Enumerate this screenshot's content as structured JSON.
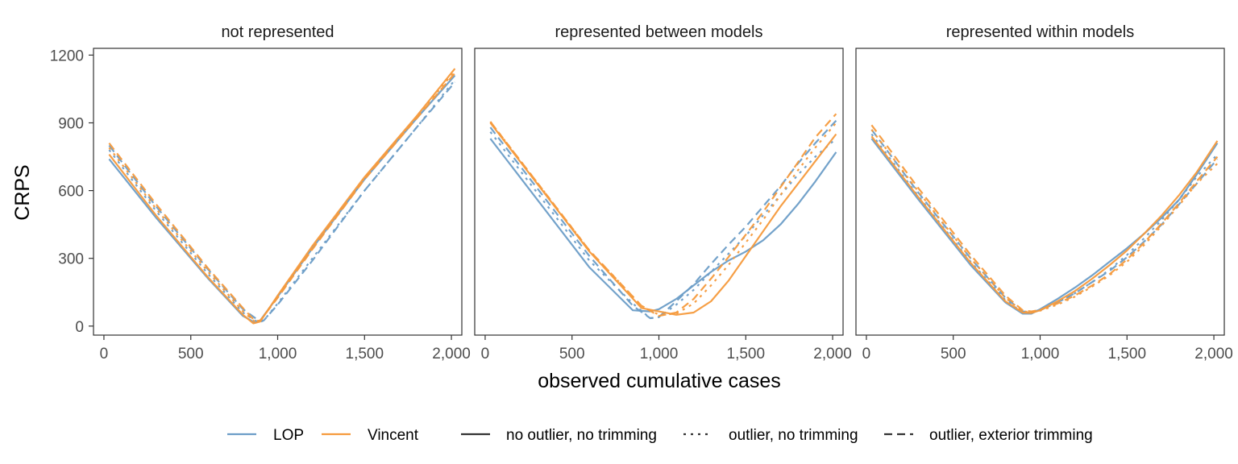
{
  "chart_data": {
    "type": "line",
    "ylabel": "CRPS",
    "xlabel": "observed cumulative cases",
    "xlim": [
      -60,
      2060
    ],
    "ylim": [
      -40,
      1230
    ],
    "x_ticks": [
      0,
      500,
      1000,
      1500,
      2000
    ],
    "x_tick_labels": [
      "0",
      "500",
      "1,000",
      "1,500",
      "2,000"
    ],
    "y_ticks": [
      0,
      300,
      600,
      900,
      1200
    ],
    "y_tick_labels": [
      "0",
      "300",
      "600",
      "900",
      "1200"
    ],
    "grid": false,
    "legend_position": "bottom",
    "colors": {
      "LOP": "#6B9DC7",
      "Vincent": "#F59A3C"
    },
    "legend": {
      "method": [
        {
          "name": "LOP",
          "color": "#6B9DC7"
        },
        {
          "name": "Vincent",
          "color": "#F59A3C"
        }
      ],
      "scenario": [
        {
          "name": "no outlier, no trimming",
          "dash": "solid"
        },
        {
          "name": "outlier, no trimming",
          "dash": "dotted"
        },
        {
          "name": "outlier, exterior trimming",
          "dash": "dashed"
        }
      ]
    },
    "panels": [
      {
        "title": "not represented",
        "series": [
          {
            "method": "LOP",
            "scenario": "no outlier, no trimming",
            "x": [
              30,
              300,
              600,
              800,
              870,
              900,
              1000,
              1200,
              1500,
              1800,
              2020
            ],
            "y": [
              740,
              480,
              210,
              45,
              15,
              25,
              130,
              345,
              650,
              920,
              1110
            ]
          },
          {
            "method": "LOP",
            "scenario": "outlier, no trimming",
            "x": [
              30,
              300,
              600,
              800,
              890,
              920,
              1000,
              1200,
              1500,
              1800,
              2020
            ],
            "y": [
              780,
              510,
              230,
              60,
              15,
              25,
              100,
              300,
              600,
              880,
              1090
            ]
          },
          {
            "method": "LOP",
            "scenario": "outlier, exterior trimming",
            "x": [
              30,
              300,
              600,
              800,
              890,
              920,
              1000,
              1200,
              1500,
              1800,
              2020
            ],
            "y": [
              800,
              530,
              250,
              75,
              25,
              25,
              95,
              290,
              600,
              880,
              1080
            ]
          },
          {
            "method": "Vincent",
            "scenario": "no outlier, no trimming",
            "x": [
              30,
              300,
              600,
              800,
              860,
              900,
              1000,
              1200,
              1500,
              1800,
              2020
            ],
            "y": [
              760,
              490,
              215,
              50,
              12,
              20,
              135,
              355,
              660,
              930,
              1140
            ]
          },
          {
            "method": "Vincent",
            "scenario": "outlier, no trimming",
            "x": [
              30,
              300,
              600,
              800,
              870,
              900,
              1000,
              1200,
              1500,
              1800,
              2020
            ],
            "y": [
              790,
              520,
              240,
              65,
              18,
              25,
              130,
              345,
              655,
              925,
              1130
            ]
          },
          {
            "method": "Vincent",
            "scenario": "outlier, exterior trimming",
            "x": [
              30,
              300,
              600,
              800,
              870,
              900,
              1000,
              1200,
              1500,
              1800,
              2020
            ],
            "y": [
              810,
              540,
              255,
              80,
              22,
              25,
              125,
              340,
              650,
              920,
              1120
            ]
          }
        ]
      },
      {
        "title": "represented between models",
        "series": [
          {
            "method": "LOP",
            "scenario": "no outlier, no trimming",
            "x": [
              30,
              300,
              600,
              850,
              950,
              1000,
              1100,
              1200,
              1300,
              1400,
              1500,
              1600,
              1700,
              1800,
              1900,
              2020
            ],
            "y": [
              830,
              560,
              260,
              70,
              65,
              75,
              120,
              180,
              240,
              290,
              330,
              380,
              450,
              540,
              640,
              770
            ]
          },
          {
            "method": "LOP",
            "scenario": "outlier, no trimming",
            "x": [
              30,
              300,
              600,
              850,
              950,
              1000,
              1100,
              1200,
              1300,
              1400,
              1500,
              1600,
              1700,
              1800,
              1900,
              2020
            ],
            "y": [
              860,
              590,
              290,
              100,
              35,
              40,
              95,
              160,
              240,
              320,
              400,
              490,
              580,
              670,
              750,
              830
            ]
          },
          {
            "method": "LOP",
            "scenario": "outlier, exterior trimming",
            "x": [
              30,
              300,
              600,
              850,
              950,
              1000,
              1100,
              1200,
              1300,
              1400,
              1500,
              1600,
              1700,
              1800,
              1900,
              2020
            ],
            "y": [
              880,
              610,
              310,
              90,
              35,
              40,
              110,
              185,
              275,
              360,
              440,
              530,
              620,
              720,
              810,
              910
            ]
          },
          {
            "method": "Vincent",
            "scenario": "no outlier, no trimming",
            "x": [
              30,
              300,
              600,
              900,
              1000,
              1100,
              1200,
              1300,
              1400,
              1500,
              1600,
              1700,
              1800,
              1900,
              2020
            ],
            "y": [
              900,
              630,
              330,
              80,
              65,
              50,
              60,
              110,
              200,
              310,
              420,
              530,
              630,
              730,
              850
            ]
          },
          {
            "method": "Vincent",
            "scenario": "outlier, no trimming",
            "x": [
              30,
              300,
              600,
              900,
              1000,
              1100,
              1200,
              1300,
              1400,
              1500,
              1600,
              1700,
              1800,
              1900,
              2020
            ],
            "y": [
              905,
              635,
              335,
              90,
              50,
              55,
              100,
              180,
              270,
              370,
              470,
              580,
              690,
              790,
              900
            ]
          },
          {
            "method": "Vincent",
            "scenario": "outlier, exterior trimming",
            "x": [
              30,
              300,
              600,
              900,
              1000,
              1100,
              1200,
              1300,
              1400,
              1500,
              1600,
              1700,
              1800,
              1900,
              2020
            ],
            "y": [
              905,
              635,
              335,
              90,
              45,
              60,
              120,
              210,
              305,
              405,
              505,
              615,
              725,
              835,
              940
            ]
          }
        ]
      },
      {
        "title": "represented within models",
        "series": [
          {
            "method": "LOP",
            "scenario": "no outlier, no trimming",
            "x": [
              30,
              300,
              600,
              800,
              900,
              950,
              1000,
              1100,
              1200,
              1300,
              1400,
              1500,
              1600,
              1700,
              1800,
              1900,
              2020
            ],
            "y": [
              830,
              560,
              270,
              105,
              55,
              55,
              75,
              120,
              170,
              225,
              285,
              345,
              410,
              480,
              560,
              670,
              810
            ]
          },
          {
            "method": "LOP",
            "scenario": "outlier, no trimming",
            "x": [
              30,
              300,
              600,
              800,
              900,
              950,
              1000,
              1100,
              1200,
              1300,
              1400,
              1500,
              1600,
              1700,
              1800,
              1900,
              2020
            ],
            "y": [
              850,
              575,
              285,
              115,
              60,
              60,
              70,
              105,
              145,
              195,
              250,
              315,
              390,
              470,
              560,
              660,
              760
            ]
          },
          {
            "method": "LOP",
            "scenario": "outlier, exterior trimming",
            "x": [
              30,
              300,
              600,
              800,
              900,
              950,
              1000,
              1100,
              1200,
              1300,
              1400,
              1500,
              1600,
              1700,
              1800,
              1900,
              2020
            ],
            "y": [
              870,
              590,
              300,
              125,
              65,
              62,
              72,
              105,
              145,
              195,
              245,
              305,
              375,
              450,
              540,
              630,
              740
            ]
          },
          {
            "method": "Vincent",
            "scenario": "no outlier, no trimming",
            "x": [
              30,
              300,
              600,
              800,
              900,
              950,
              1000,
              1100,
              1200,
              1300,
              1400,
              1500,
              1600,
              1700,
              1800,
              1900,
              2020
            ],
            "y": [
              840,
              570,
              280,
              110,
              60,
              58,
              70,
              110,
              155,
              210,
              270,
              335,
              410,
              490,
              580,
              680,
              820
            ]
          },
          {
            "method": "Vincent",
            "scenario": "outlier, no trimming",
            "x": [
              30,
              300,
              600,
              800,
              900,
              950,
              1000,
              1100,
              1200,
              1300,
              1400,
              1500,
              1600,
              1700,
              1800,
              1900,
              2020
            ],
            "y": [
              870,
              595,
              300,
              125,
              65,
              62,
              68,
              95,
              130,
              175,
              225,
              285,
              360,
              445,
              535,
              630,
              720
            ]
          },
          {
            "method": "Vincent",
            "scenario": "outlier, exterior trimming",
            "x": [
              30,
              300,
              600,
              800,
              900,
              950,
              1000,
              1100,
              1200,
              1300,
              1400,
              1500,
              1600,
              1700,
              1800,
              1900,
              2020
            ],
            "y": [
              890,
              610,
              315,
              135,
              70,
              65,
              72,
              100,
              135,
              180,
              230,
              295,
              370,
              455,
              545,
              640,
              750
            ]
          }
        ]
      }
    ]
  }
}
